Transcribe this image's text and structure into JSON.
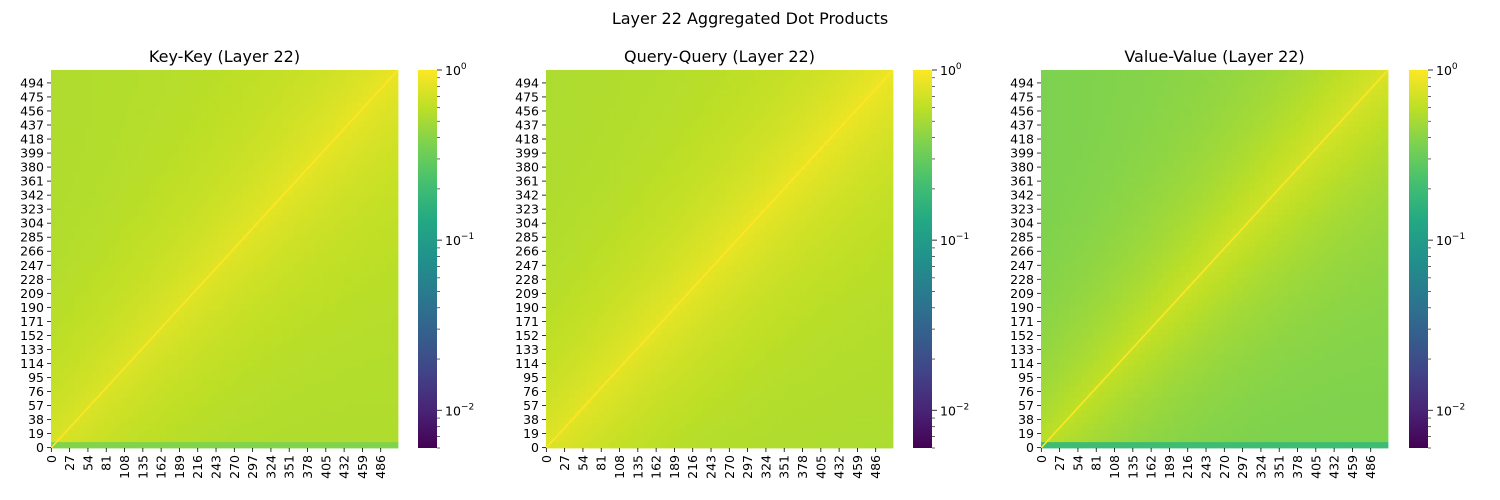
{
  "figure": {
    "suptitle": "Layer 22 Aggregated Dot Products"
  },
  "colormap": {
    "name": "viridis",
    "stops": [
      "#440154",
      "#482475",
      "#414487",
      "#355f8d",
      "#2a788e",
      "#21918c",
      "#22a884",
      "#44bf70",
      "#7ad151",
      "#bddf26",
      "#fde725"
    ]
  },
  "chart_data": [
    {
      "type": "heatmap",
      "title": "Key-Key (Layer 22)",
      "xlabel": "",
      "ylabel": "",
      "matrix_size": 512,
      "x_ticks": [
        0,
        27,
        54,
        81,
        108,
        135,
        162,
        189,
        216,
        243,
        270,
        297,
        324,
        351,
        378,
        405,
        432,
        459,
        486
      ],
      "y_ticks": [
        0,
        19,
        38,
        57,
        76,
        95,
        114,
        133,
        152,
        171,
        190,
        209,
        228,
        247,
        266,
        285,
        304,
        323,
        342,
        361,
        380,
        399,
        418,
        437,
        456,
        475,
        494
      ],
      "colorbar": {
        "scale": "log",
        "vmin": 0.006,
        "vmax": 1.0,
        "tick_labels": [
          {
            "base": "10",
            "exp": "0",
            "value": 1.0
          },
          {
            "base": "10",
            "exp": "−1",
            "value": 0.1
          },
          {
            "base": "10",
            "exp": "−2",
            "value": 0.01
          }
        ]
      },
      "value_summary": {
        "diagonal": 1.0,
        "near_diagonal": 0.75,
        "off_diagonal_far": 0.5,
        "upper_region": 0.7,
        "row0": 0.38
      }
    },
    {
      "type": "heatmap",
      "title": "Query-Query (Layer 22)",
      "xlabel": "",
      "ylabel": "",
      "matrix_size": 512,
      "x_ticks": [
        0,
        27,
        54,
        81,
        108,
        135,
        162,
        189,
        216,
        243,
        270,
        297,
        324,
        351,
        378,
        405,
        432,
        459,
        486
      ],
      "y_ticks": [
        0,
        19,
        38,
        57,
        76,
        95,
        114,
        133,
        152,
        171,
        190,
        209,
        228,
        247,
        266,
        285,
        304,
        323,
        342,
        361,
        380,
        399,
        418,
        437,
        456,
        475,
        494
      ],
      "colorbar": {
        "scale": "log",
        "vmin": 0.006,
        "vmax": 1.0,
        "tick_labels": [
          {
            "base": "10",
            "exp": "0",
            "value": 1.0
          },
          {
            "base": "10",
            "exp": "−1",
            "value": 0.1
          },
          {
            "base": "10",
            "exp": "−2",
            "value": 0.01
          }
        ]
      },
      "value_summary": {
        "diagonal": 1.0,
        "near_diagonal": 0.8,
        "off_diagonal_far": 0.5,
        "upper_region": 0.65,
        "row0": 0.75
      }
    },
    {
      "type": "heatmap",
      "title": "Value-Value (Layer 22)",
      "xlabel": "",
      "ylabel": "",
      "matrix_size": 512,
      "x_ticks": [
        0,
        27,
        54,
        81,
        108,
        135,
        162,
        189,
        216,
        243,
        270,
        297,
        324,
        351,
        378,
        405,
        432,
        459,
        486
      ],
      "y_ticks": [
        0,
        19,
        38,
        57,
        76,
        95,
        114,
        133,
        152,
        171,
        190,
        209,
        228,
        247,
        266,
        285,
        304,
        323,
        342,
        361,
        380,
        399,
        418,
        437,
        456,
        475,
        494
      ],
      "colorbar": {
        "scale": "log",
        "vmin": 0.006,
        "vmax": 1.0,
        "tick_labels": [
          {
            "base": "10",
            "exp": "0",
            "value": 1.0
          },
          {
            "base": "10",
            "exp": "−1",
            "value": 0.1
          },
          {
            "base": "10",
            "exp": "−2",
            "value": 0.01
          }
        ]
      },
      "value_summary": {
        "diagonal": 1.0,
        "near_diagonal": 0.6,
        "off_diagonal_far": 0.32,
        "upper_region": 0.55,
        "row0": 0.2
      }
    }
  ]
}
